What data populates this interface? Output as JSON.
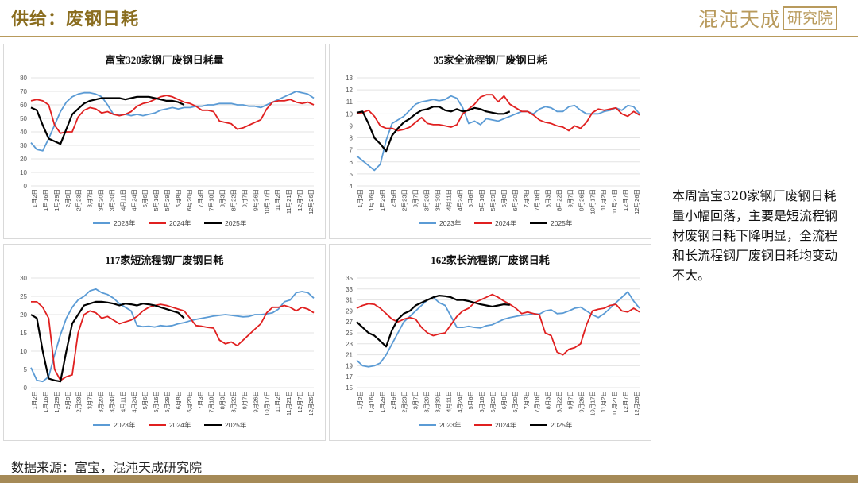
{
  "header": {
    "title": "供给：废钢日耗"
  },
  "logo": {
    "text": "混沌天成",
    "boxed": "研究院",
    "color": "#b89a5c"
  },
  "sidebar_note": {
    "text": "本周富宝320家钢厂废钢日耗量小幅回落，主要是短流程钢材废钢日耗下降明显，全流程和长流程钢厂废钢日耗均变动不大。"
  },
  "footer": {
    "source": "数据来源：富宝，混沌天成研究院"
  },
  "colors": {
    "2023": "#5b9bd5",
    "2024": "#e02020",
    "2025": "#000000"
  },
  "x_labels": [
    "1月2日",
    "1月16日",
    "1月29日",
    "2月9日",
    "2月23日",
    "3月7日",
    "3月20日",
    "3月30日",
    "4月11日",
    "4月24日",
    "5月6日",
    "5月16日",
    "5月29日",
    "6月8日",
    "6月20日",
    "7月3日",
    "7月18日",
    "8月3日",
    "8月22日",
    "9月7日",
    "9月26日",
    "10月17日",
    "11月2日",
    "11月21日",
    "12月7日",
    "12月26日"
  ],
  "chart_data": [
    {
      "type": "line",
      "title": "富宝320家钢厂废钢日耗量",
      "ylim": [
        0,
        80
      ],
      "ystep": 10,
      "series": [
        {
          "name": "2023年",
          "values": [
            32,
            27,
            26,
            35,
            45,
            55,
            62,
            66,
            68,
            69,
            69,
            68,
            66,
            60,
            53,
            53,
            53,
            52,
            53,
            52,
            53,
            54,
            56,
            57,
            58,
            57,
            58,
            58,
            59,
            59,
            60,
            60,
            61,
            61,
            61,
            60,
            60,
            59,
            59,
            58,
            60,
            62,
            64,
            66,
            68,
            70,
            69,
            68,
            65
          ]
        },
        {
          "name": "2024年",
          "values": [
            63,
            64,
            63,
            60,
            45,
            39,
            40,
            40,
            51,
            56,
            58,
            57,
            54,
            55,
            53,
            52,
            53,
            55,
            59,
            61,
            62,
            64,
            66,
            67,
            66,
            64,
            62,
            61,
            59,
            56,
            56,
            55,
            48,
            47,
            46,
            42,
            43,
            45,
            47,
            49,
            57,
            62,
            63,
            63,
            64,
            62,
            61,
            62,
            60
          ]
        },
        {
          "name": "2025年",
          "values": [
            58,
            56,
            45,
            35,
            33,
            31,
            42,
            53,
            57,
            61,
            63,
            64,
            65,
            65,
            65,
            65,
            64,
            65,
            66,
            66,
            66,
            65,
            64,
            63,
            63,
            62,
            60
          ]
        }
      ]
    },
    {
      "type": "line",
      "title": "35家全流程钢厂废钢日耗",
      "ylim": [
        4,
        13
      ],
      "ystep": 1,
      "series": [
        {
          "name": "2023年",
          "values": [
            6.5,
            6.1,
            5.7,
            5.3,
            5.8,
            7.8,
            9.2,
            9.5,
            9.8,
            10.3,
            10.8,
            11.0,
            11.1,
            11.2,
            11.1,
            11.2,
            11.5,
            11.3,
            10.5,
            9.2,
            9.4,
            9.1,
            9.6,
            9.5,
            9.4,
            9.6,
            9.8,
            10.0,
            10.2,
            10.2,
            10.0,
            10.4,
            10.6,
            10.5,
            10.2,
            10.2,
            10.6,
            10.7,
            10.3,
            10.0,
            10.0,
            10.0,
            10.2,
            10.3,
            10.5,
            10.3,
            10.7,
            10.6,
            10.0
          ]
        },
        {
          "name": "2024年",
          "values": [
            10.0,
            10.1,
            10.3,
            9.8,
            9.0,
            8.8,
            8.8,
            8.6,
            8.7,
            8.9,
            9.3,
            9.7,
            9.2,
            9.1,
            9.1,
            9.0,
            8.9,
            9.1,
            10.0,
            10.4,
            10.8,
            11.4,
            11.6,
            11.6,
            11.0,
            11.5,
            10.8,
            10.5,
            10.2,
            10.2,
            9.9,
            9.5,
            9.3,
            9.2,
            9.0,
            8.9,
            8.6,
            9.0,
            8.8,
            9.3,
            10.1,
            10.4,
            10.3,
            10.4,
            10.5,
            10.0,
            9.8,
            10.2,
            9.9
          ]
        },
        {
          "name": "2025年",
          "values": [
            10.1,
            10.2,
            9.2,
            8.0,
            7.5,
            6.9,
            8.2,
            8.8,
            9.3,
            9.6,
            10.0,
            10.3,
            10.4,
            10.6,
            10.6,
            10.3,
            10.2,
            10.4,
            10.2,
            10.3,
            10.5,
            10.4,
            10.2,
            10.1,
            10.0,
            10.0,
            10.2
          ]
        }
      ]
    },
    {
      "type": "line",
      "title": "117家短流程钢厂废钢日耗",
      "ylim": [
        0,
        30
      ],
      "ystep": 5,
      "series": [
        {
          "name": "2023年",
          "values": [
            5.5,
            2.0,
            1.7,
            3.0,
            9.0,
            14.5,
            19.0,
            22.0,
            24.0,
            25.0,
            26.5,
            27.0,
            26.0,
            25.5,
            24.5,
            23.0,
            22.0,
            21.0,
            17.0,
            16.7,
            16.8,
            16.6,
            17.0,
            16.8,
            17.0,
            17.5,
            17.8,
            18.3,
            18.7,
            19.0,
            19.3,
            19.6,
            19.8,
            20.0,
            19.8,
            19.6,
            19.4,
            19.5,
            20.0,
            20.0,
            20.2,
            20.5,
            21.5,
            23.5,
            24.0,
            26.0,
            26.3,
            26.0,
            24.5
          ]
        },
        {
          "name": "2024年",
          "values": [
            23.5,
            23.5,
            22.0,
            19.0,
            5.0,
            2.0,
            3.0,
            3.5,
            15.0,
            20.0,
            21.0,
            20.5,
            19.0,
            19.5,
            18.5,
            17.5,
            18.0,
            18.5,
            19.5,
            21.0,
            22.0,
            22.5,
            22.8,
            22.5,
            22.0,
            21.5,
            21.0,
            19.0,
            17.0,
            16.8,
            16.5,
            16.3,
            13.0,
            12.0,
            12.5,
            11.5,
            13.0,
            14.5,
            16.0,
            17.5,
            20.5,
            22.0,
            22.0,
            22.5,
            22.0,
            21.0,
            22.0,
            21.5,
            20.5
          ]
        },
        {
          "name": "2025年",
          "values": [
            20.0,
            19.0,
            10.0,
            2.5,
            2.0,
            1.7,
            10.0,
            17.5,
            20.0,
            22.5,
            23.0,
            23.5,
            23.5,
            23.3,
            23.0,
            22.5,
            23.0,
            22.8,
            22.5,
            23.0,
            22.8,
            22.5,
            22.0,
            21.5,
            21.0,
            20.5,
            19.0
          ]
        }
      ]
    },
    {
      "type": "line",
      "title": "162家长流程钢厂废钢日耗",
      "ylim": [
        15,
        35
      ],
      "ystep": 2,
      "series": [
        {
          "name": "2023年",
          "values": [
            20,
            19,
            18.8,
            19,
            19.5,
            21,
            23,
            25,
            27,
            28,
            29,
            30,
            31,
            31.5,
            30.5,
            30,
            28,
            26,
            26,
            26.2,
            26,
            25.9,
            26.3,
            26.5,
            27,
            27.5,
            27.8,
            28,
            28.2,
            28.3,
            28.5,
            28.4,
            29,
            29.2,
            28.5,
            28.6,
            29,
            29.5,
            29.7,
            29,
            28.3,
            27.8,
            28.5,
            29.5,
            30.5,
            31.5,
            32.5,
            30.8,
            29.5
          ]
        },
        {
          "name": "2024年",
          "values": [
            29.5,
            30,
            30.3,
            30.2,
            29.5,
            28.5,
            27.5,
            27,
            27.5,
            27.8,
            27.5,
            26,
            25,
            24.5,
            24.8,
            25,
            26.5,
            28,
            29,
            29.5,
            30.5,
            31,
            31.5,
            32,
            31.5,
            30.8,
            30.2,
            29.5,
            28.5,
            28.8,
            28.5,
            28.3,
            25,
            24.5,
            21.5,
            21,
            22,
            22.3,
            23,
            26.5,
            29,
            29.3,
            29.5,
            30,
            30.2,
            29,
            28.8,
            29.5,
            28.8
          ]
        },
        {
          "name": "2025年",
          "values": [
            27,
            26,
            25,
            24.5,
            23.5,
            22.5,
            25.5,
            27.5,
            28.5,
            29,
            30,
            30.5,
            31,
            31.5,
            31.8,
            31.7,
            31.5,
            31,
            31,
            30.8,
            30.5,
            30.2,
            30,
            29.8,
            30,
            30.2,
            30.1
          ]
        }
      ]
    }
  ]
}
